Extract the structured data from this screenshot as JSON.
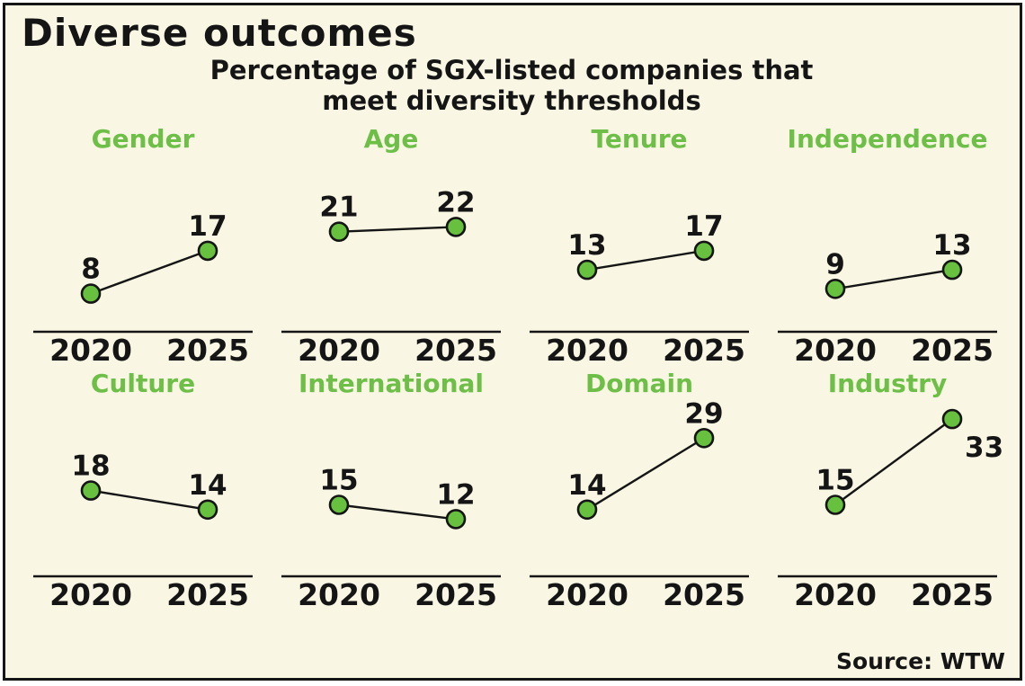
{
  "header": {
    "title": "Diverse outcomes",
    "subtitle_line1": "Percentage of SGX-listed companies that",
    "subtitle_line2": "meet diversity thresholds"
  },
  "footer": {
    "source": "Source: WTW"
  },
  "colors": {
    "background": "#f9f7e4",
    "ink": "#151515",
    "accent_green": "#6ebf48",
    "dot_fill": "#67c13e"
  },
  "chart_data": {
    "type": "line",
    "title": "Percentage of SGX-listed companies that meet diversity thresholds",
    "categories": [
      "2020",
      "2025"
    ],
    "ylim": [
      0,
      35
    ],
    "grid": false,
    "legend": "none",
    "layout": "4x2 small multiples, shared value scale, baseline at 0",
    "panels": [
      {
        "label": "Gender",
        "values": [
          8,
          17
        ]
      },
      {
        "label": "Age",
        "values": [
          21,
          22
        ]
      },
      {
        "label": "Tenure",
        "values": [
          13,
          17
        ]
      },
      {
        "label": "Independence",
        "values": [
          9,
          13
        ]
      },
      {
        "label": "Culture",
        "values": [
          18,
          14
        ]
      },
      {
        "label": "International",
        "values": [
          15,
          12
        ]
      },
      {
        "label": "Domain",
        "values": [
          14,
          29
        ]
      },
      {
        "label": "Industry",
        "values": [
          15,
          33
        ]
      }
    ]
  }
}
